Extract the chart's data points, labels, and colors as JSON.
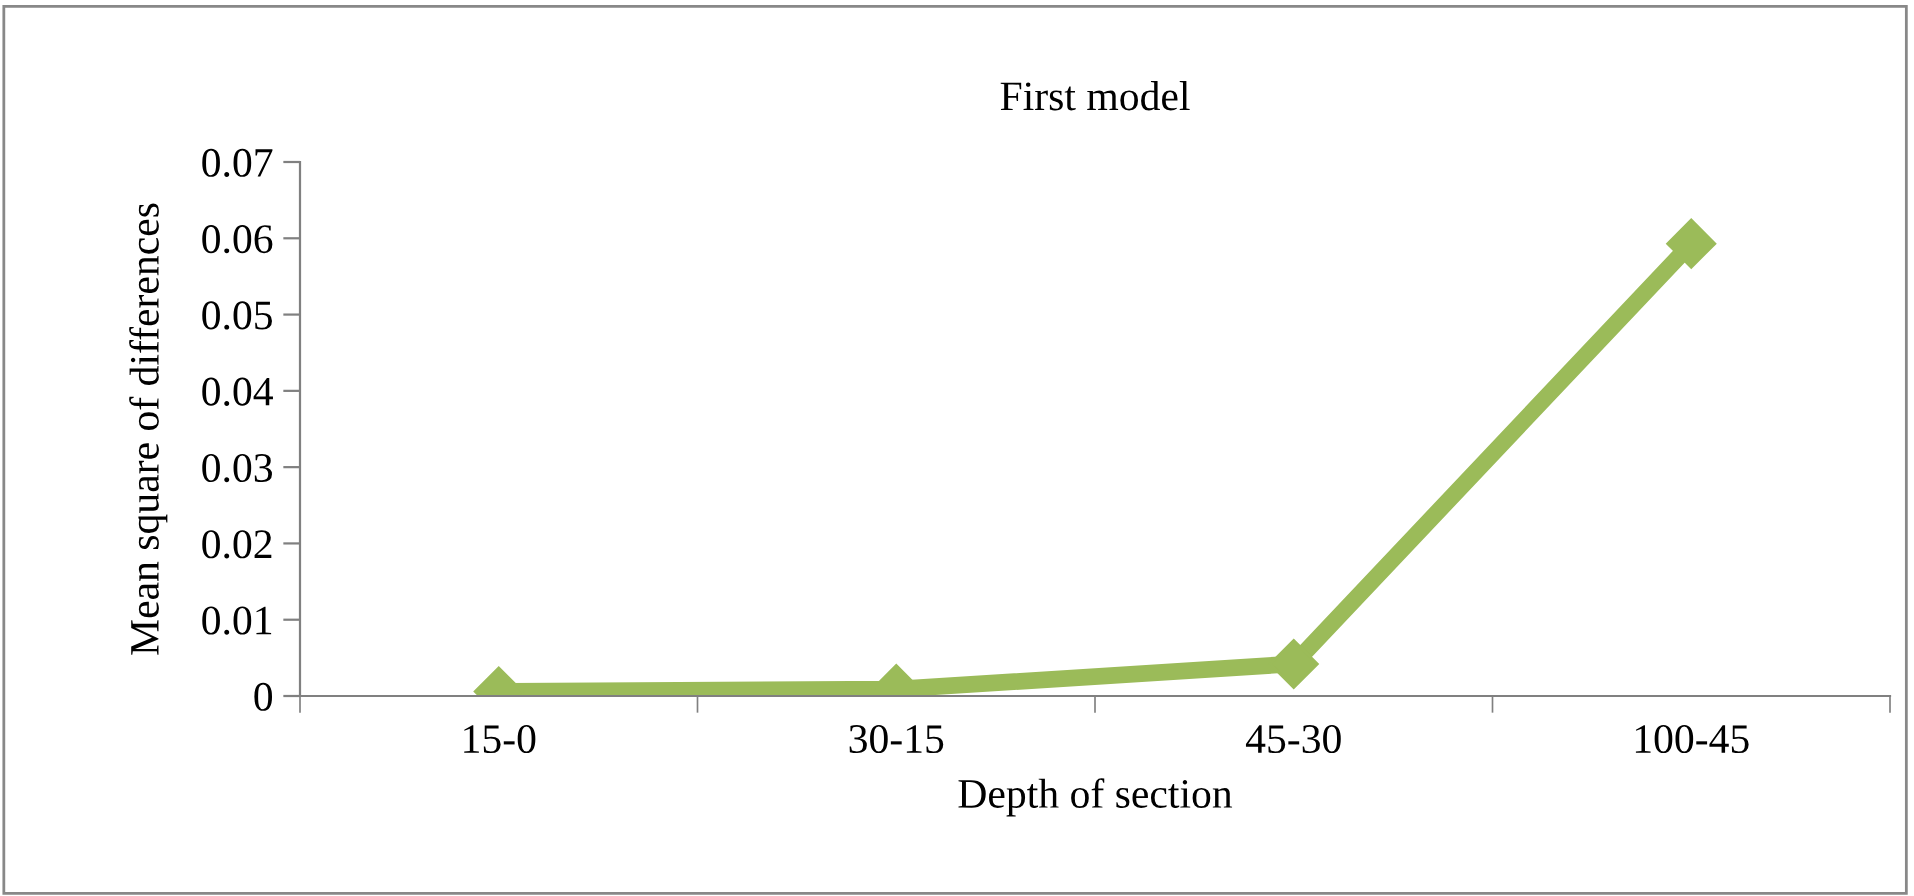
{
  "chart_data": {
    "type": "line",
    "title": "First model",
    "xlabel": "Depth of section",
    "ylabel": "Mean square of differences",
    "categories": [
      "15-0",
      "30-15",
      "45-30",
      "100-45"
    ],
    "series": [
      {
        "color": "#9bbb59",
        "values": [
          0.0006,
          0.0009,
          0.0042,
          0.0593
        ]
      }
    ],
    "ylim": [
      0,
      0.07
    ],
    "yticks": [
      0,
      0.01,
      0.02,
      0.03,
      0.04,
      0.05,
      0.06,
      0.07
    ],
    "grid": false,
    "legend": false,
    "marker": "diamond",
    "line_style": "solid"
  }
}
